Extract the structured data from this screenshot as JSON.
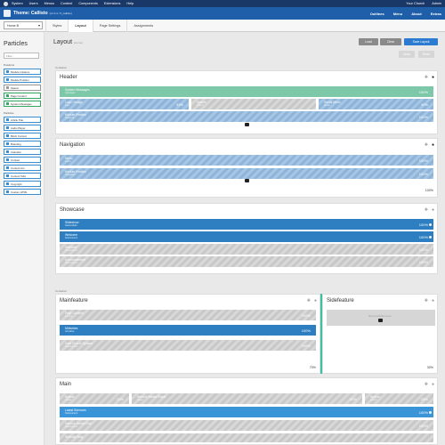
{
  "topbar": {
    "menu": [
      "System",
      "Users",
      "Menus",
      "Content",
      "Components",
      "Extensions",
      "Help"
    ],
    "right": [
      "Your Church",
      "Admin"
    ]
  },
  "titlebar": {
    "title": "Theme: Callisto",
    "version": "(v1.0.4 / 5_callisto)",
    "nav": [
      "Outlines",
      "Menu",
      "About",
      "Extras"
    ]
  },
  "subbar": {
    "outline_select": "Home B",
    "tabs": [
      "Styles",
      "Layout",
      "Page Settings",
      "Assignments"
    ]
  },
  "sidebar": {
    "title": "Particles",
    "filter_placeholder": "Filter...",
    "positions_label": "Positions",
    "positions": [
      "Module Instance",
      "Module Position",
      "Spacer",
      "Page Content",
      "System Messages"
    ],
    "particles_label": "Particles",
    "particles": [
      "Article Title",
      "Audio Player",
      "Block Content",
      "Branding",
      "Calendar",
      "Contact",
      "Content List",
      "Content Tabs",
      "Copyright",
      "Custom HTML"
    ]
  },
  "main": {
    "title": "Layout",
    "title_sub": "(Home)",
    "load": "Load",
    "clear": "Clear",
    "save": "Save Layout",
    "undo": "Undo",
    "redo": "Redo",
    "container_label": "Container",
    "header": {
      "title": "Header",
      "rows": [
        {
          "label": "System Messages",
          "sub": "messages",
          "pct": "100%"
        },
        {
          "label": "Logo / Image",
          "sub": "logo",
          "pct": "33%"
        },
        {
          "label": "Spacer",
          "sub": "spacer",
          "pct": ""
        },
        {
          "label": "Social Menu",
          "sub": "social",
          "pct": "30%"
        },
        {
          "label": "Module Position",
          "sub": "header-a",
          "pct": "100%"
        }
      ]
    },
    "navigation": {
      "title": "Navigation",
      "rows": [
        {
          "label": "Menu",
          "sub": "menu",
          "pct": "100%"
        },
        {
          "label": "Module Position",
          "sub": "navigation",
          "pct": "100%"
        }
      ],
      "footer_pct": "100%"
    },
    "showcase": {
      "title": "Showcase",
      "rows": [
        {
          "label": "Slideshow",
          "sub": "featureslider",
          "pct": "100%"
        },
        {
          "label": "Welcome",
          "sub": "blockcontent",
          "pct": "100%"
        },
        {
          "label": "Headline",
          "sub": "blockcontent",
          "pct": "100%"
        },
        {
          "label": "Announcement",
          "sub": "blockcontent",
          "pct": "100%"
        }
      ]
    },
    "container2_label": "Container",
    "mainfeature": {
      "title": "Mainfeature",
      "rows": [
        {
          "label": "Page Content",
          "sub": "content",
          "pct": "100%"
        },
        {
          "label": "Ministries",
          "sub": "ministries",
          "pct": "100%"
        },
        {
          "label": "Hold Church System",
          "sub": "blockcontent",
          "pct": "100%"
        }
      ],
      "footer_pct": "70%"
    },
    "sidefeature": {
      "title": "Sidefeature",
      "drop_text": "Drop particles here...",
      "footer_pct": "30%"
    },
    "mainsection": {
      "title": "Main",
      "rows": [
        {
          "label": "Spacer",
          "sub": "spacer",
          "pct": "25%"
        },
        {
          "label": "Sermon Media Player",
          "sub": "player",
          "pct": "50%"
        },
        {
          "label": "Spacer",
          "sub": "spacer",
          "pct": "25%"
        },
        {
          "label": "Latest Sermons",
          "sub": "blockcontent",
          "pct": "100%"
        },
        {
          "label": "Sermon Series Grid",
          "sub": "blockcontent",
          "pct": "100%"
        },
        {
          "label": "Worship Blog",
          "sub": "blockcontent",
          "pct": ""
        }
      ]
    }
  },
  "colors": {
    "topbar": "#1a3867",
    "titlebar": "#1f5ea8",
    "position_green": "#7cc8a8",
    "particle_blue": "#2d7fc1",
    "save_button": "#2b7bd0"
  }
}
